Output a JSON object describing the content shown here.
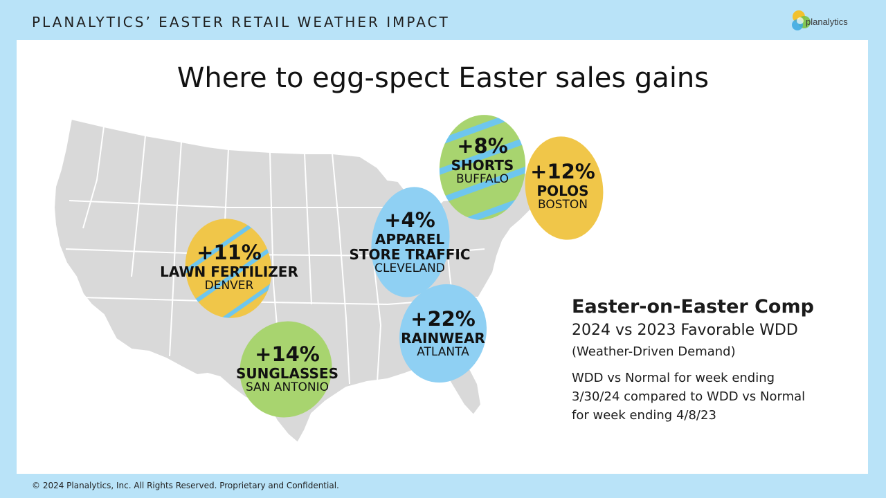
{
  "header": {
    "title": "PLANALYTICS’ EASTER RETAIL WEATHER IMPACT"
  },
  "logo": {
    "text": "planalytics",
    "colors": [
      "#f2c12e",
      "#7cc242",
      "#3aa8e0"
    ]
  },
  "main_title": "Where to egg-spect Easter sales gains",
  "map": {
    "land_color": "#d9d9d9",
    "border_color": "#ffffff"
  },
  "eggs": [
    {
      "pct": "+8%",
      "product": "SHORTS",
      "city": "BUFFALO",
      "color": "#a8d46f"
    },
    {
      "pct": "+12%",
      "product": "POLOS",
      "city": "BOSTON",
      "color": "#f0c649"
    },
    {
      "pct": "+4%",
      "product": "APPAREL STORE TRAFFIC",
      "product_lines": [
        "APPAREL",
        "STORE TRAFFIC"
      ],
      "city": "CLEVELAND",
      "color": "#8fd0f3"
    },
    {
      "pct": "+11%",
      "product": "LAWN FERTILIZER",
      "city": "DENVER",
      "color": "#f0c649"
    },
    {
      "pct": "+22%",
      "product": "RAINWEAR",
      "city": "ATLANTA",
      "color": "#8fd0f3"
    },
    {
      "pct": "+14%",
      "product": "SUNGLASSES",
      "city": "SAN ANTONIO",
      "color": "#a8d46f"
    }
  ],
  "comp": {
    "title": "Easter-on-Easter Comp",
    "subtitle": "2024 vs 2023 Favorable WDD",
    "paren": "(Weather-Driven Demand)",
    "note_lines": [
      "WDD vs Normal for week ending",
      "3/30/24 compared to WDD vs Normal",
      "for week ending  4/8/23"
    ]
  },
  "footer": "© 2024 Planalytics, Inc. All Rights Reserved. Proprietary and Confidential."
}
